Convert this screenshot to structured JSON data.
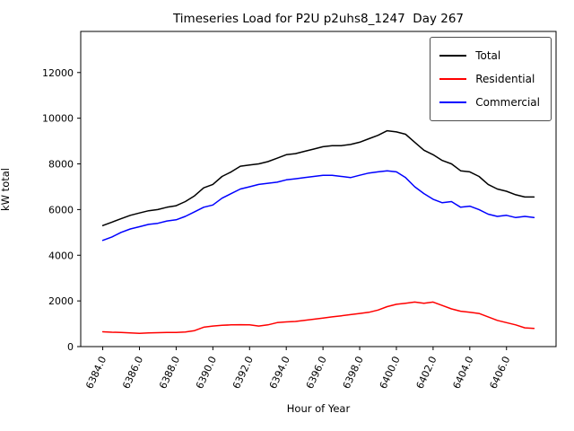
{
  "chart_data": {
    "type": "line",
    "title": "Timeseries Load for P2U p2uhs8_1247  Day 267",
    "xlabel": "Hour of Year",
    "ylabel": "kW total",
    "xlim": [
      6382.8,
      6408.7
    ],
    "ylim": [
      0,
      13800
    ],
    "grid": false,
    "legend_position": "upper right",
    "xticks": [
      6384,
      6386,
      6388,
      6390,
      6392,
      6394,
      6396,
      6398,
      6400,
      6402,
      6404,
      6406
    ],
    "xtick_labels": [
      "6384.0",
      "6386.0",
      "6388.0",
      "6390.0",
      "6392.0",
      "6394.0",
      "6396.0",
      "6398.0",
      "6400.0",
      "6402.0",
      "6404.0",
      "6406.0"
    ],
    "yticks": [
      0,
      2000,
      4000,
      6000,
      8000,
      10000,
      12000
    ],
    "ytick_labels": [
      "0",
      "2000",
      "4000",
      "6000",
      "8000",
      "10000",
      "12000"
    ],
    "x": [
      6384.0,
      6384.5,
      6385.0,
      6385.5,
      6386.0,
      6386.5,
      6387.0,
      6387.5,
      6388.0,
      6388.5,
      6389.0,
      6389.5,
      6390.0,
      6390.5,
      6391.0,
      6391.5,
      6392.0,
      6392.5,
      6393.0,
      6393.5,
      6394.0,
      6394.5,
      6395.0,
      6395.5,
      6396.0,
      6396.5,
      6397.0,
      6397.5,
      6398.0,
      6398.5,
      6399.0,
      6399.5,
      6400.0,
      6400.5,
      6401.0,
      6401.5,
      6402.0,
      6402.5,
      6403.0,
      6403.5,
      6404.0,
      6404.5,
      6405.0,
      6405.5,
      6406.0,
      6406.5,
      6407.0,
      6407.5
    ],
    "series": [
      {
        "name": "Total",
        "color": "#000000",
        "values": [
          5300,
          5450,
          5600,
          5750,
          5850,
          5950,
          6000,
          6100,
          6170,
          6350,
          6600,
          6950,
          7100,
          7450,
          7650,
          7900,
          7950,
          8000,
          8100,
          8250,
          8400,
          8450,
          8550,
          8650,
          8750,
          8800,
          8800,
          8850,
          8950,
          9100,
          9250,
          9450,
          9400,
          9300,
          8950,
          8600,
          8400,
          8150,
          8000,
          7700,
          7650,
          7450,
          7100,
          6900,
          6800,
          6650,
          6550,
          6550
        ]
      },
      {
        "name": "Residential",
        "color": "#ff0000",
        "values": [
          650,
          630,
          620,
          600,
          580,
          600,
          610,
          620,
          620,
          640,
          700,
          850,
          900,
          930,
          950,
          960,
          950,
          900,
          950,
          1050,
          1080,
          1100,
          1150,
          1200,
          1250,
          1300,
          1350,
          1400,
          1450,
          1500,
          1600,
          1750,
          1850,
          1900,
          1950,
          1900,
          1950,
          1800,
          1650,
          1550,
          1500,
          1450,
          1300,
          1150,
          1050,
          950,
          820,
          800
        ]
      },
      {
        "name": "Commercial",
        "color": "#0000ff",
        "values": [
          4650,
          4800,
          5000,
          5150,
          5250,
          5350,
          5400,
          5500,
          5550,
          5700,
          5900,
          6100,
          6200,
          6500,
          6700,
          6900,
          7000,
          7100,
          7150,
          7200,
          7300,
          7350,
          7400,
          7450,
          7500,
          7500,
          7450,
          7400,
          7500,
          7600,
          7650,
          7700,
          7650,
          7400,
          7000,
          6700,
          6450,
          6300,
          6350,
          6100,
          6150,
          6000,
          5800,
          5700,
          5750,
          5650,
          5700,
          5650
        ]
      }
    ]
  }
}
